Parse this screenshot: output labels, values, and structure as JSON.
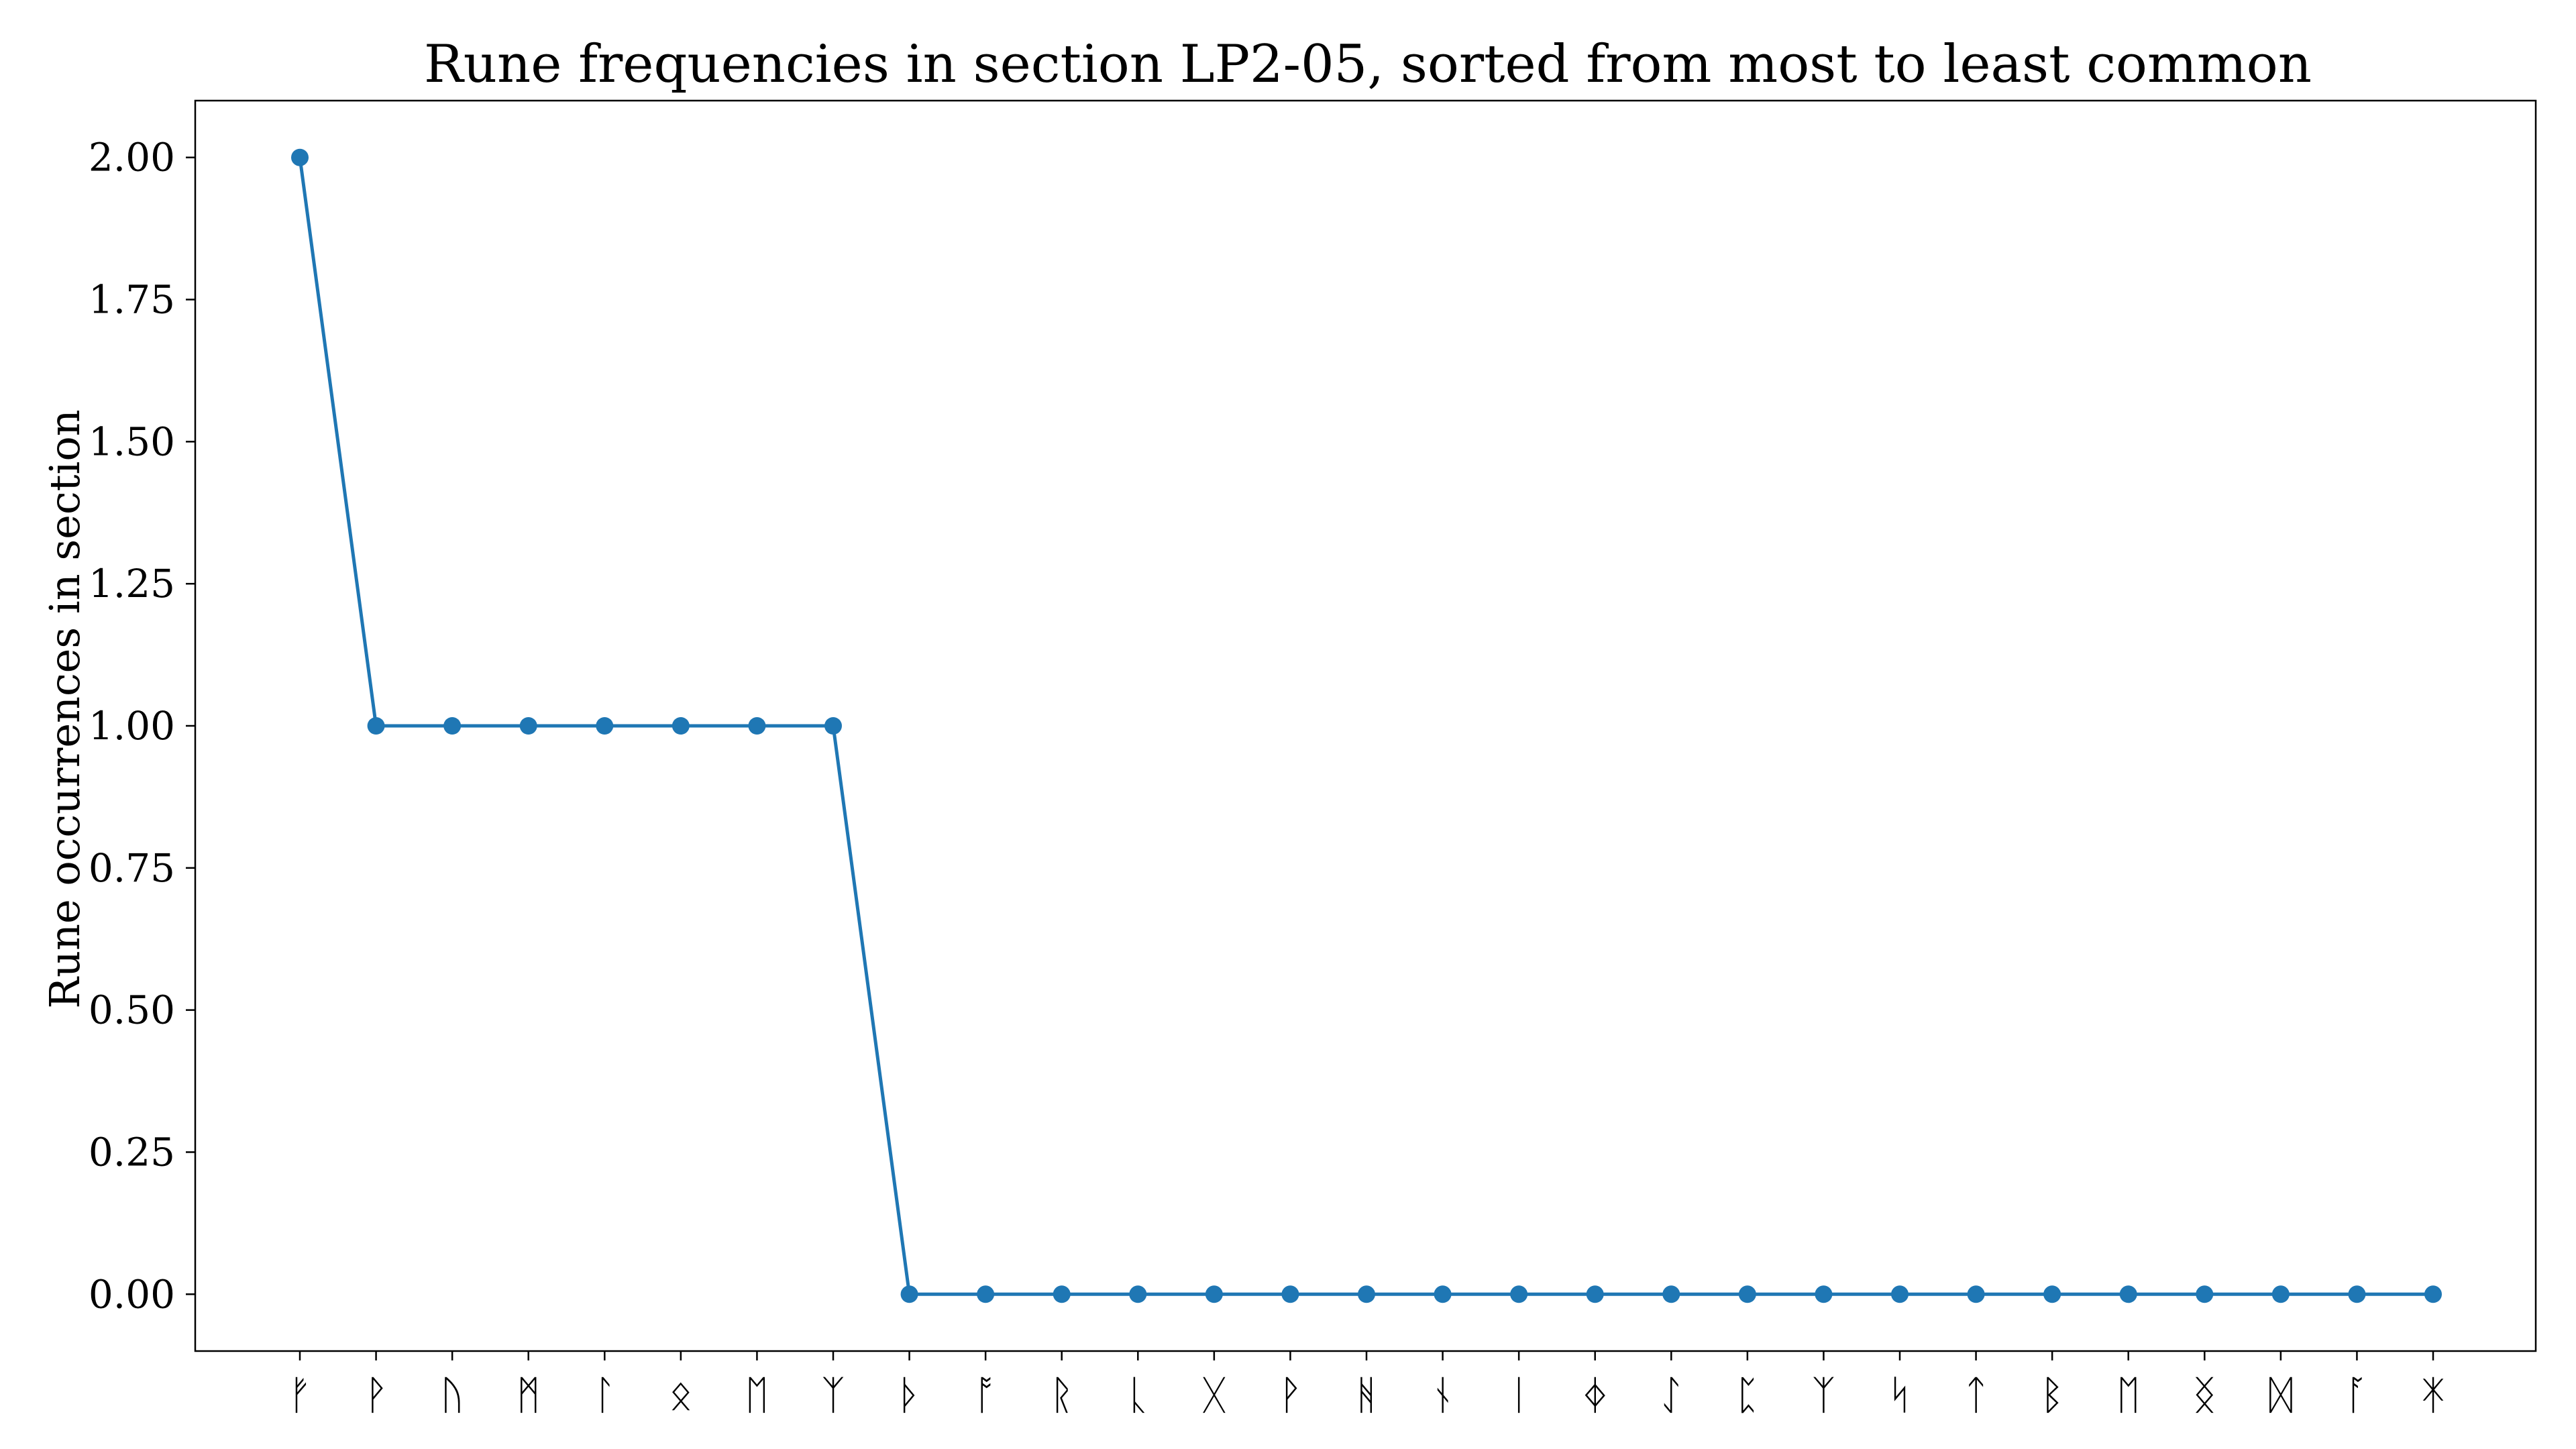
{
  "chart_data": {
    "type": "line",
    "title": "Rune frequencies in section LP2-05, sorted from most to least common",
    "xlabel": "",
    "ylabel": "Rune occurrences in section",
    "categories": [
      "ᚠ",
      "ᚹ",
      "ᚢ",
      "ᛗ",
      "ᛚ",
      "ᛟ",
      "ᛖ",
      "ᛉ",
      "ᚦ",
      "ᚩ",
      "ᚱ",
      "ᚳ",
      "ᚷ",
      "ᚹ",
      "ᚻ",
      "ᚾ",
      "ᛁ",
      "ᛄ",
      "ᛇ",
      "ᛈ",
      "ᛉ",
      "ᛋ",
      "ᛏ",
      "ᛒ",
      "ᛖ",
      "ᛝ",
      "ᛞ",
      "ᚪ",
      "ᛡ"
    ],
    "series": [
      {
        "name": "Rune occurrences",
        "color": "#1f77b4",
        "values": [
          2,
          1,
          1,
          1,
          1,
          1,
          1,
          1,
          0,
          0,
          0,
          0,
          0,
          0,
          0,
          0,
          0,
          0,
          0,
          0,
          0,
          0,
          0,
          0,
          0,
          0,
          0,
          0,
          0
        ]
      }
    ],
    "ylim": [
      -0.1,
      2.1
    ],
    "yticks": [
      0.0,
      0.25,
      0.5,
      0.75,
      1.0,
      1.25,
      1.5,
      1.75,
      2.0
    ],
    "ytick_labels": [
      "0.00",
      "0.25",
      "0.50",
      "0.75",
      "1.00",
      "1.25",
      "1.50",
      "1.75",
      "2.00"
    ],
    "grid": false,
    "legend": "none"
  }
}
